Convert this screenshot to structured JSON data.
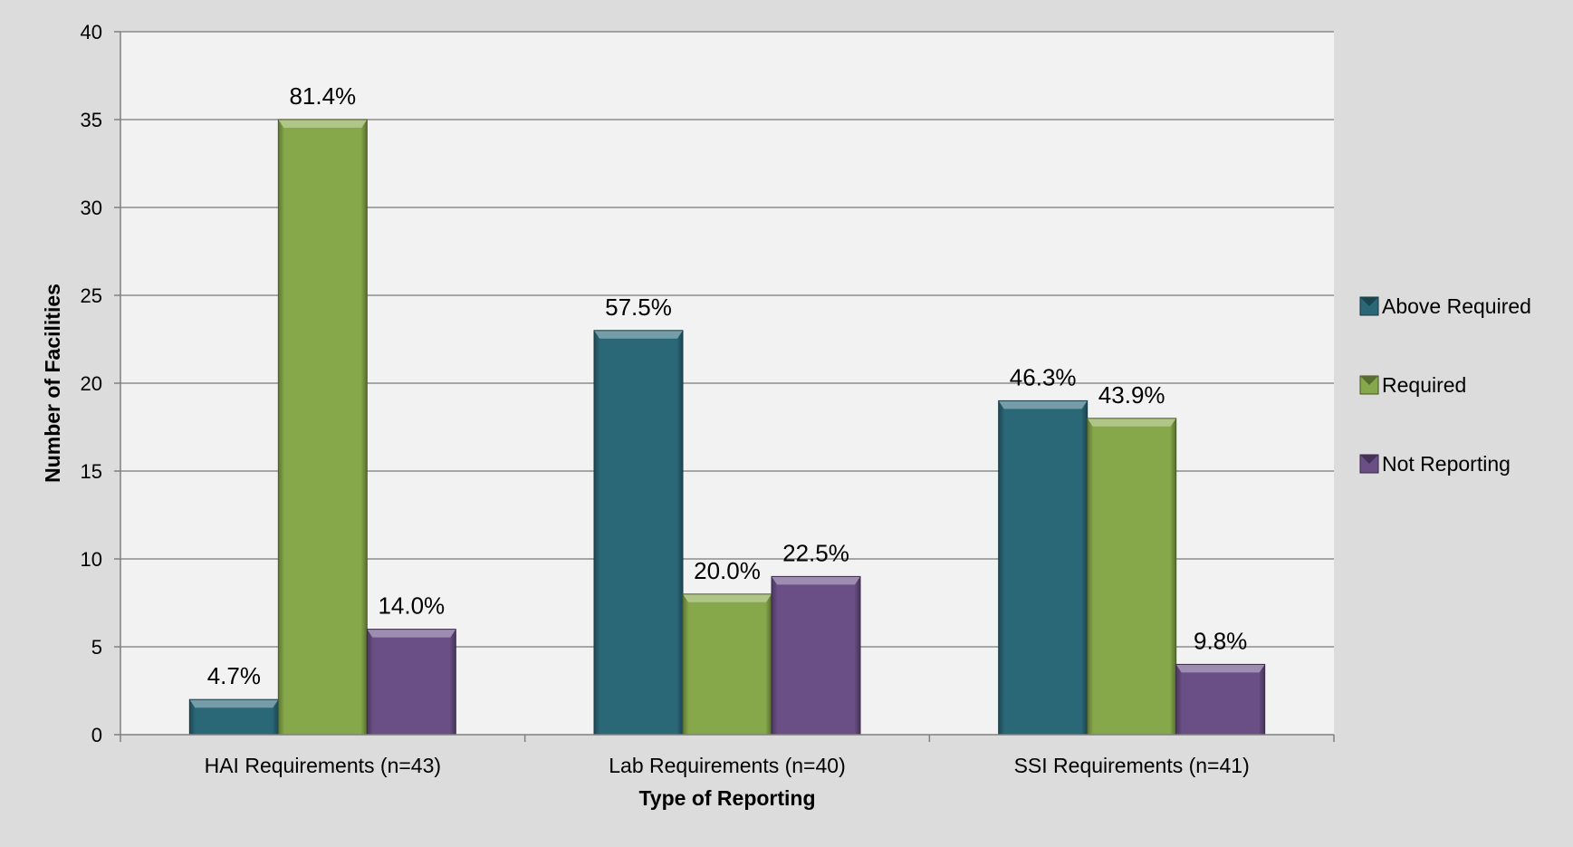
{
  "chart_data": {
    "type": "bar",
    "xlabel": "Type of Reporting",
    "ylabel": "Number of Facilities",
    "ylim": [
      0,
      40
    ],
    "yticks": [
      0,
      5,
      10,
      15,
      20,
      25,
      30,
      35,
      40
    ],
    "grid": true,
    "legend_position": "right",
    "categories": [
      "HAI Requirements (n=43)",
      "Lab Requirements (n=40)",
      "SSI Requirements (n=41)"
    ],
    "series": [
      {
        "name": "Above Required",
        "color": "#2a6878",
        "values": [
          2,
          23,
          19
        ],
        "labels": [
          "4.7%",
          "57.5%",
          "46.3%"
        ]
      },
      {
        "name": "Required",
        "color": "#86a84a",
        "values": [
          35,
          8,
          18
        ],
        "labels": [
          "81.4%",
          "20.0%",
          "43.9%"
        ]
      },
      {
        "name": "Not Reporting",
        "color": "#6a4f86",
        "values": [
          6,
          9,
          4
        ],
        "labels": [
          "14.0%",
          "22.5%",
          "9.8%"
        ]
      }
    ]
  }
}
